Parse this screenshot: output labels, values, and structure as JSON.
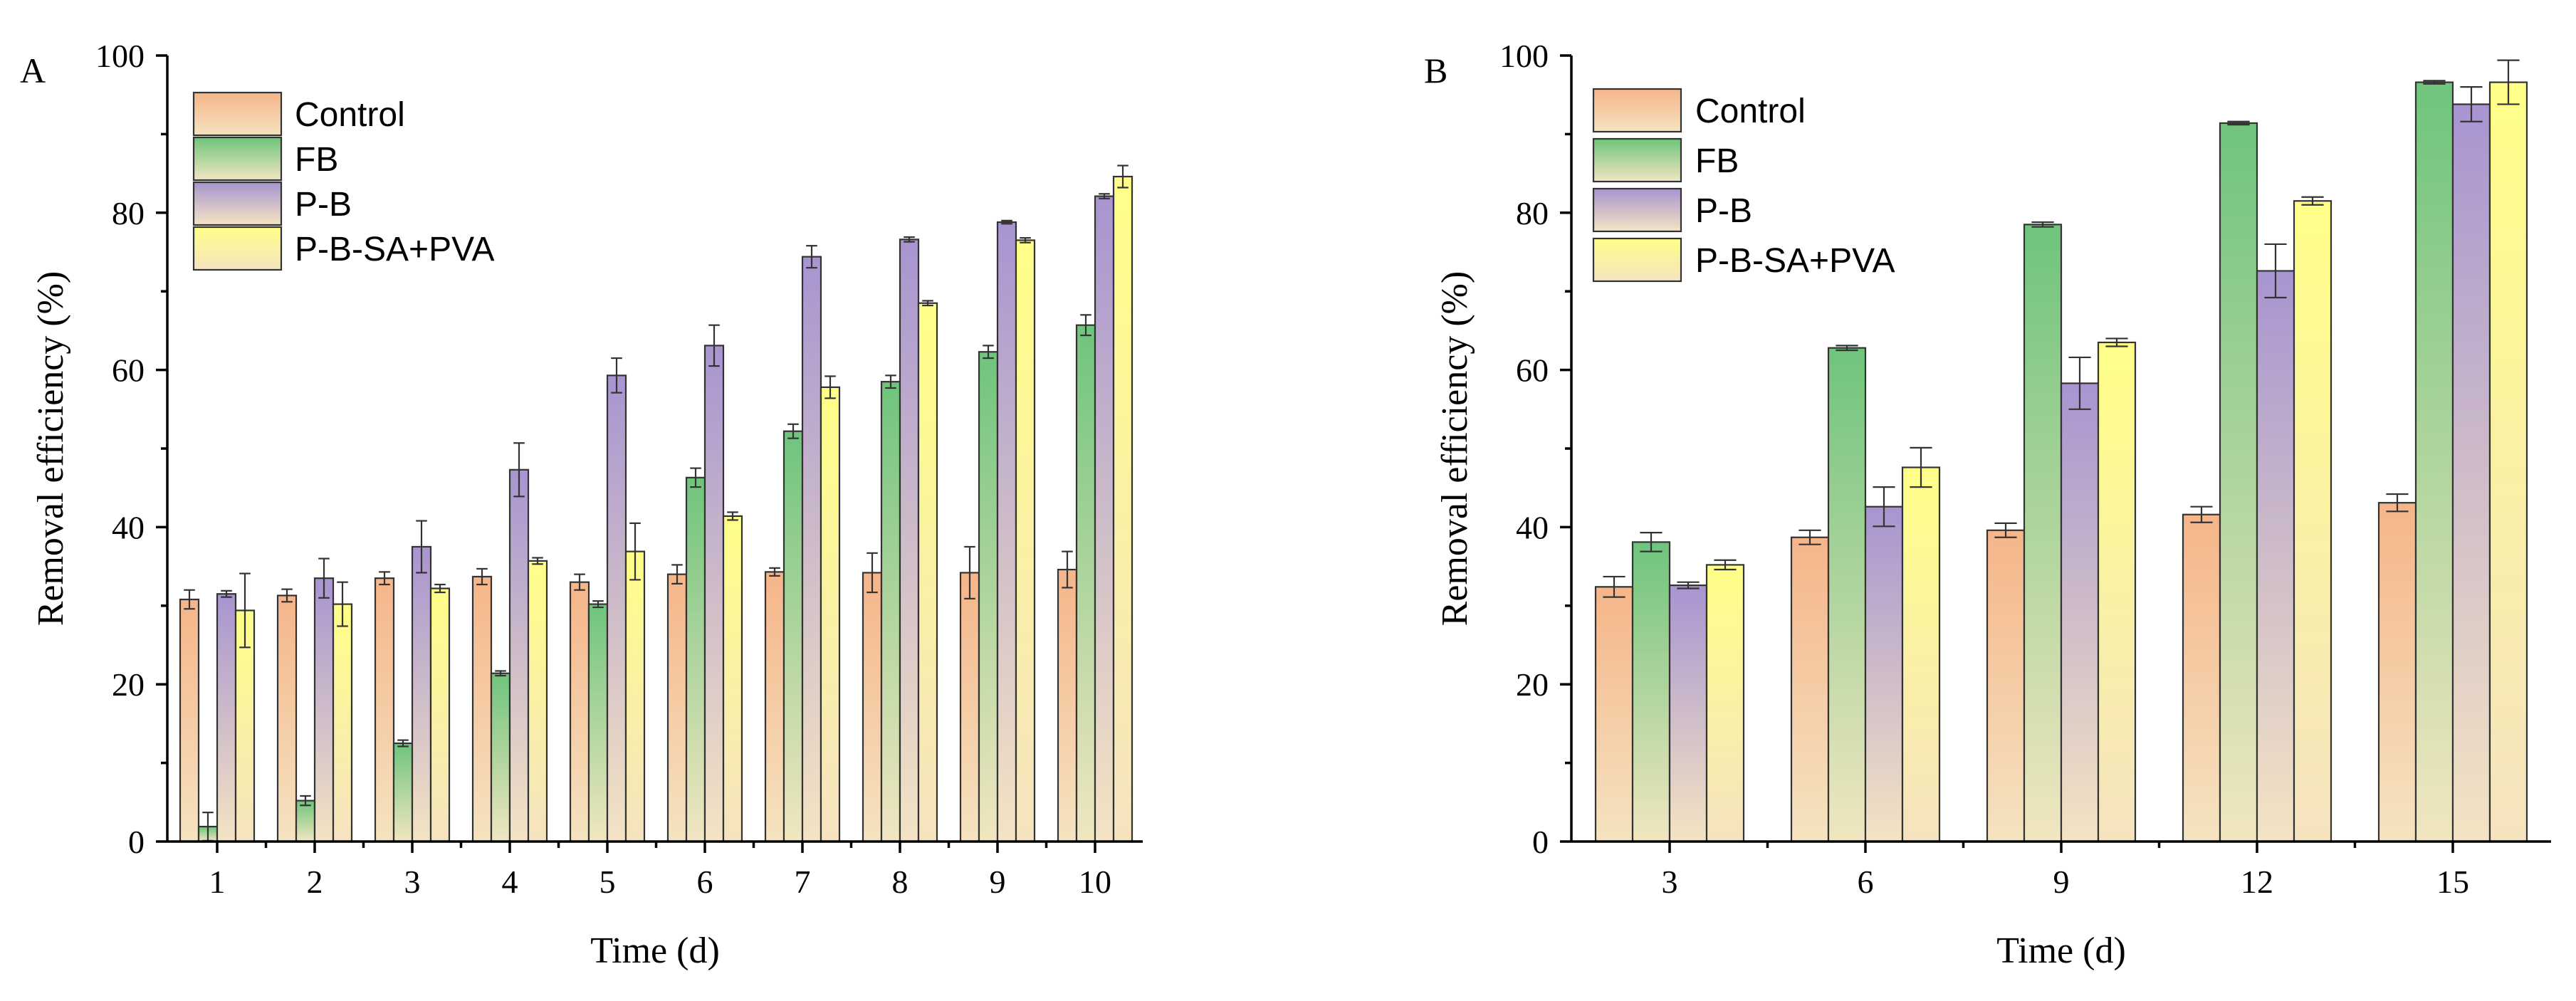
{
  "colors": {
    "Control": {
      "top": "#f5b58a",
      "bottom": "#f5e3c0"
    },
    "FB": {
      "top": "#6fc47c",
      "bottom": "#f1e6c1"
    },
    "P-B": {
      "top": "#a894d0",
      "bottom": "#f4e4c3"
    },
    "P-B-SA+PVA": {
      "top": "#ffff88",
      "bottom": "#f5e3c0"
    }
  },
  "chart_data": [
    {
      "panel": "A",
      "type": "bar",
      "xlabel": "Time (d)",
      "ylabel": "Removal efficiency (%)",
      "ylim": [
        0,
        100
      ],
      "yticks": [
        "0",
        "20",
        "40",
        "60",
        "80",
        "100"
      ],
      "categories": [
        "1",
        "2",
        "3",
        "4",
        "5",
        "6",
        "7",
        "8",
        "9",
        "10"
      ],
      "legend": "top-left",
      "series": [
        {
          "name": "Control",
          "values": [
            30.8,
            31.3,
            33.5,
            33.7,
            33.0,
            34.0,
            34.3,
            34.2,
            34.2,
            34.6
          ],
          "errors": [
            1.2,
            0.8,
            0.8,
            1.0,
            1.0,
            1.2,
            0.5,
            2.5,
            3.3,
            2.3
          ]
        },
        {
          "name": "FB",
          "values": [
            1.9,
            5.2,
            12.5,
            21.4,
            30.2,
            46.3,
            52.2,
            58.5,
            62.3,
            65.7
          ],
          "errors": [
            1.8,
            0.6,
            0.4,
            0.3,
            0.4,
            1.2,
            0.9,
            0.8,
            0.8,
            1.3
          ]
        },
        {
          "name": "P-B",
          "values": [
            31.5,
            33.5,
            37.5,
            47.3,
            59.3,
            63.1,
            74.4,
            76.6,
            78.8,
            82.1
          ],
          "errors": [
            0.4,
            2.5,
            3.3,
            3.4,
            2.2,
            2.6,
            1.4,
            0.3,
            0.2,
            0.3
          ]
        },
        {
          "name": "P-B-SA+PVA",
          "values": [
            29.4,
            30.2,
            32.2,
            35.7,
            36.9,
            41.4,
            57.8,
            68.5,
            76.5,
            84.6
          ],
          "errors": [
            4.7,
            2.8,
            0.5,
            0.4,
            3.6,
            0.5,
            1.4,
            0.3,
            0.3,
            1.4
          ]
        }
      ]
    },
    {
      "panel": "B",
      "type": "bar",
      "xlabel": "Time (d)",
      "ylabel": "Removal efficiency (%)",
      "ylim": [
        0,
        100
      ],
      "yticks": [
        "0",
        "20",
        "40",
        "60",
        "80",
        "100"
      ],
      "categories": [
        "3",
        "6",
        "9",
        "12",
        "15"
      ],
      "legend": "top-left",
      "series": [
        {
          "name": "Control",
          "values": [
            32.4,
            38.7,
            39.6,
            41.6,
            43.1
          ],
          "errors": [
            1.3,
            0.9,
            0.9,
            1.0,
            1.1
          ]
        },
        {
          "name": "FB",
          "values": [
            38.1,
            62.8,
            78.5,
            91.4,
            96.6
          ],
          "errors": [
            1.2,
            0.3,
            0.3,
            0.2,
            0.2
          ]
        },
        {
          "name": "P-B",
          "values": [
            32.6,
            42.6,
            58.3,
            72.6,
            93.8
          ],
          "errors": [
            0.4,
            2.5,
            3.3,
            3.4,
            2.2
          ]
        },
        {
          "name": "P-B-SA+PVA",
          "values": [
            35.2,
            47.6,
            63.5,
            81.5,
            96.6
          ],
          "errors": [
            0.6,
            2.5,
            0.5,
            0.5,
            2.8
          ]
        }
      ]
    }
  ]
}
